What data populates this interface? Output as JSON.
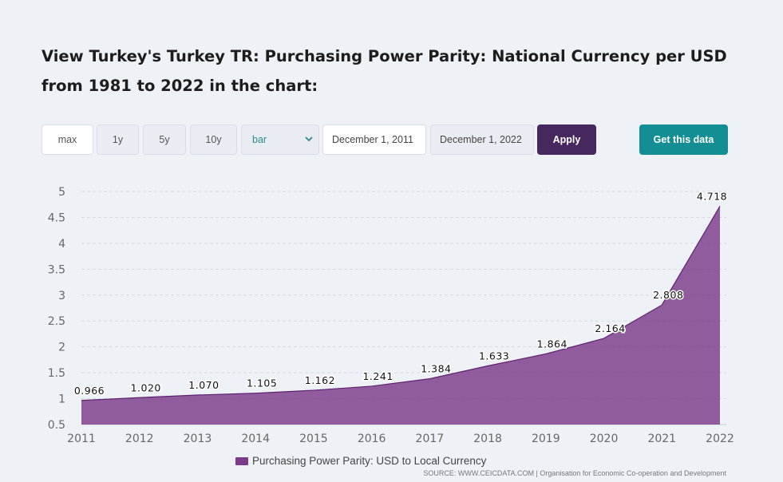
{
  "heading": "View Turkey's Turkey TR: Purchasing Power Parity: National Currency per USD from 1981 to 2022 in the chart:",
  "toolbar": {
    "range_buttons": [
      "max",
      "1y",
      "5y",
      "10y"
    ],
    "chart_type_selected": "bar",
    "start_date": "December 1, 2011",
    "end_date": "December 1, 2022",
    "apply_label": "Apply",
    "get_data_label": "Get this data"
  },
  "colors": {
    "area_fill": "#7b3a8a",
    "apply_button": "#46285e",
    "get_data_button": "#138f93"
  },
  "icons": {
    "select_arrow": "chevron-down-icon"
  },
  "chart_data": {
    "type": "area",
    "x": [
      "2011",
      "2012",
      "2013",
      "2014",
      "2015",
      "2016",
      "2017",
      "2018",
      "2019",
      "2020",
      "2021",
      "2022"
    ],
    "series": [
      {
        "name": "Purchasing Power Parity: USD to Local Currency",
        "values": [
          0.966,
          1.02,
          1.07,
          1.105,
          1.162,
          1.241,
          1.384,
          1.633,
          1.864,
          2.164,
          2.808,
          4.718
        ],
        "labels": [
          "0.966",
          "1.020",
          "1.070",
          "1.105",
          "1.162",
          "1.241",
          "1.384",
          "1.633",
          "1.864",
          "2.164",
          "2.808",
          "4.718"
        ]
      }
    ],
    "yticks": [
      "0.5",
      "1",
      "1.5",
      "2",
      "2.5",
      "3",
      "3.5",
      "4",
      "4.5",
      "5"
    ],
    "ylim": [
      0.5,
      5
    ],
    "grid": true,
    "legend_position": "bottom-center"
  },
  "source_text": "SOURCE: WWW.CEICDATA.COM | Organisation for Economic Co-operation and Development"
}
